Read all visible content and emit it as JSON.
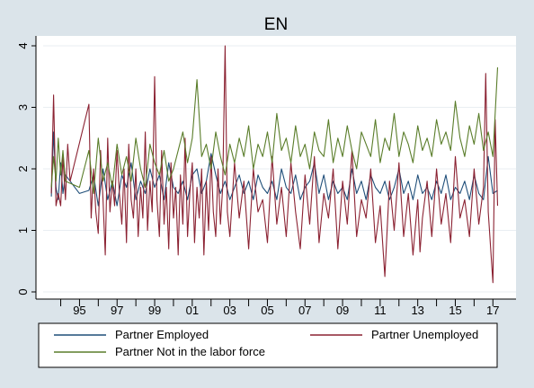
{
  "chart_data": {
    "type": "line",
    "title": "EN",
    "xlabel": "",
    "ylabel": "",
    "ylim": [
      0,
      4
    ],
    "xlim": [
      1993.4,
      2017.8
    ],
    "y_ticks": [
      0,
      1,
      2,
      3,
      4
    ],
    "y_tick_labels": [
      "0",
      "1",
      "2",
      "3",
      "4"
    ],
    "x_major_ticks": [
      1995,
      1997,
      1999,
      2001,
      2003,
      2005,
      2007,
      2009,
      2011,
      2013,
      2015,
      2017
    ],
    "x_tick_labels": [
      "95",
      "97",
      "99",
      "01",
      "03",
      "05",
      "07",
      "09",
      "11",
      "13",
      "15",
      "17"
    ],
    "grid": "horizontal",
    "legend_position": "bottom",
    "series": [
      {
        "name": "Partner Employed",
        "color": "#1f4e79",
        "x": [
          1993.5,
          1993.62,
          1993.75,
          1993.87,
          1994.0,
          1994.12,
          1994.25,
          1995.0,
          1995.5,
          1995.75,
          1996.0,
          1996.25,
          1996.5,
          1996.75,
          1997.0,
          1997.25,
          1997.5,
          1997.75,
          1998.0,
          1998.25,
          1998.5,
          1998.75,
          1999.0,
          1999.25,
          1999.5,
          1999.75,
          2000.0,
          2000.25,
          2000.5,
          2000.75,
          2001.0,
          2001.25,
          2001.5,
          2001.75,
          2002.0,
          2002.25,
          2002.5,
          2002.75,
          2003.0,
          2003.25,
          2003.5,
          2003.75,
          2004.0,
          2004.25,
          2004.5,
          2004.75,
          2005.0,
          2005.25,
          2005.5,
          2005.75,
          2006.0,
          2006.25,
          2006.5,
          2006.75,
          2007.0,
          2007.25,
          2007.5,
          2007.75,
          2008.0,
          2008.25,
          2008.5,
          2008.75,
          2009.0,
          2009.25,
          2009.5,
          2009.75,
          2010.0,
          2010.25,
          2010.5,
          2010.75,
          2011.0,
          2011.25,
          2011.5,
          2011.75,
          2012.0,
          2012.25,
          2012.5,
          2012.75,
          2013.0,
          2013.25,
          2013.5,
          2013.75,
          2014.0,
          2014.25,
          2014.5,
          2014.75,
          2015.0,
          2015.25,
          2015.5,
          2015.75,
          2016.0,
          2016.25,
          2016.5,
          2016.75,
          2017.0,
          2017.25
        ],
        "values": [
          1.55,
          2.6,
          1.7,
          1.5,
          2.1,
          1.6,
          1.9,
          1.6,
          1.65,
          1.9,
          1.4,
          2.0,
          1.5,
          1.8,
          1.4,
          1.9,
          1.7,
          2.1,
          1.5,
          1.8,
          1.6,
          2.0,
          1.7,
          1.9,
          1.5,
          2.1,
          1.7,
          1.6,
          1.8,
          1.5,
          1.9,
          2.0,
          1.6,
          1.8,
          2.25,
          1.9,
          1.6,
          1.8,
          1.5,
          1.7,
          1.9,
          1.6,
          1.8,
          1.5,
          1.9,
          1.7,
          1.6,
          1.8,
          1.5,
          2.0,
          1.7,
          1.6,
          1.9,
          1.5,
          1.7,
          1.8,
          2.1,
          1.6,
          1.9,
          1.5,
          1.8,
          1.6,
          1.7,
          1.5,
          2.0,
          1.6,
          1.8,
          1.5,
          1.9,
          1.7,
          1.6,
          1.8,
          1.5,
          1.7,
          2.0,
          1.6,
          1.8,
          1.5,
          1.9,
          1.6,
          1.7,
          1.5,
          1.8,
          1.6,
          1.9,
          1.5,
          1.7,
          1.6,
          1.8,
          1.5,
          1.9,
          1.6,
          1.5,
          2.2,
          1.6,
          1.65
        ]
      },
      {
        "name": "Partner Unemployed",
        "color": "#8b2232",
        "x": [
          1993.5,
          1993.62,
          1993.75,
          1993.87,
          1994.0,
          1994.12,
          1994.25,
          1994.37,
          1994.5,
          1995.5,
          1995.62,
          1995.75,
          1995.87,
          1996.0,
          1996.12,
          1996.25,
          1996.37,
          1996.5,
          1996.62,
          1996.75,
          1996.87,
          1997.0,
          1997.12,
          1997.25,
          1997.37,
          1997.5,
          1997.62,
          1997.75,
          1997.87,
          1998.0,
          1998.12,
          1998.25,
          1998.37,
          1998.5,
          1998.62,
          1998.75,
          1998.87,
          1999.0,
          1999.12,
          1999.25,
          1999.37,
          1999.5,
          1999.62,
          1999.75,
          1999.87,
          2000.0,
          2000.12,
          2000.25,
          2000.37,
          2000.5,
          2000.62,
          2000.75,
          2000.87,
          2001.0,
          2001.12,
          2001.25,
          2001.37,
          2001.5,
          2001.62,
          2001.75,
          2001.87,
          2002.0,
          2002.12,
          2002.25,
          2002.37,
          2002.5,
          2002.62,
          2002.75,
          2002.87,
          2003.0,
          2003.25,
          2003.5,
          2003.75,
          2004.0,
          2004.25,
          2004.5,
          2004.75,
          2005.0,
          2005.25,
          2005.5,
          2005.75,
          2006.0,
          2006.25,
          2006.5,
          2006.75,
          2007.0,
          2007.25,
          2007.5,
          2007.75,
          2008.0,
          2008.25,
          2008.5,
          2008.75,
          2009.0,
          2009.25,
          2009.5,
          2009.75,
          2010.0,
          2010.25,
          2010.5,
          2010.75,
          2011.0,
          2011.25,
          2011.5,
          2011.75,
          2012.0,
          2012.25,
          2012.5,
          2012.75,
          2013.0,
          2013.12,
          2013.25,
          2013.5,
          2013.75,
          2014.0,
          2014.25,
          2014.5,
          2014.75,
          2015.0,
          2015.25,
          2015.5,
          2015.75,
          2016.0,
          2016.25,
          2016.5,
          2016.62,
          2016.75,
          2017.0,
          2017.12,
          2017.25
        ],
        "values": [
          1.6,
          3.2,
          1.4,
          1.6,
          1.4,
          2.2,
          1.5,
          2.4,
          1.8,
          3.05,
          1.2,
          2.0,
          1.3,
          0.95,
          2.3,
          1.5,
          0.6,
          2.5,
          1.3,
          1.8,
          1.4,
          2.3,
          1.6,
          1.1,
          2.0,
          0.8,
          2.4,
          1.5,
          1.2,
          2.0,
          0.9,
          1.7,
          1.2,
          2.6,
          1.0,
          1.8,
          1.3,
          3.5,
          1.5,
          0.9,
          2.3,
          1.1,
          1.7,
          0.7,
          2.1,
          1.2,
          1.7,
          0.6,
          1.9,
          1.1,
          2.5,
          0.9,
          1.6,
          2.1,
          0.8,
          1.7,
          1.2,
          2.0,
          0.6,
          1.8,
          1.0,
          2.2,
          1.3,
          0.9,
          2.0,
          1.1,
          1.7,
          4.0,
          1.3,
          0.9,
          2.1,
          1.2,
          1.8,
          0.7,
          2.0,
          1.3,
          1.5,
          0.8,
          2.2,
          1.1,
          1.7,
          0.9,
          2.1,
          1.3,
          0.7,
          1.9,
          1.1,
          2.2,
          0.8,
          1.6,
          1.2,
          2.0,
          0.7,
          1.8,
          1.1,
          2.3,
          0.9,
          1.5,
          1.2,
          2.0,
          0.8,
          1.4,
          0.25,
          1.8,
          1.0,
          2.1,
          0.9,
          1.6,
          0.6,
          1.5,
          0.65,
          1.2,
          1.8,
          0.9,
          2.0,
          1.1,
          1.6,
          0.8,
          2.2,
          1.2,
          1.5,
          0.9,
          2.0,
          1.1,
          1.7,
          3.55,
          1.3,
          0.15,
          2.8,
          1.4
        ]
      },
      {
        "name": "Partner Not in the labor force",
        "color": "#5a7d2a",
        "x": [
          1993.5,
          1993.62,
          1993.75,
          1993.87,
          1994.0,
          1994.12,
          1994.25,
          1995.0,
          1995.5,
          1995.75,
          1996.0,
          1996.25,
          1996.5,
          1996.75,
          1997.0,
          1997.25,
          1997.5,
          1997.75,
          1998.0,
          1998.25,
          1998.5,
          1998.75,
          1999.0,
          1999.25,
          1999.5,
          1999.75,
          2000.0,
          2000.25,
          2000.5,
          2000.75,
          2001.0,
          2001.25,
          2001.5,
          2001.75,
          2002.0,
          2002.25,
          2002.5,
          2002.75,
          2003.0,
          2003.25,
          2003.5,
          2003.75,
          2004.0,
          2004.25,
          2004.5,
          2004.75,
          2005.0,
          2005.25,
          2005.5,
          2005.75,
          2006.0,
          2006.25,
          2006.5,
          2006.75,
          2007.0,
          2007.25,
          2007.5,
          2007.75,
          2008.0,
          2008.25,
          2008.5,
          2008.75,
          2009.0,
          2009.25,
          2009.5,
          2009.75,
          2010.0,
          2010.25,
          2010.5,
          2010.75,
          2011.0,
          2011.25,
          2011.5,
          2011.75,
          2012.0,
          2012.25,
          2012.5,
          2012.75,
          2013.0,
          2013.25,
          2013.5,
          2013.75,
          2014.0,
          2014.25,
          2014.5,
          2014.75,
          2015.0,
          2015.25,
          2015.5,
          2015.75,
          2016.0,
          2016.25,
          2016.5,
          2016.75,
          2017.0,
          2017.25
        ],
        "values": [
          1.7,
          2.2,
          1.8,
          2.5,
          1.9,
          2.3,
          1.8,
          1.7,
          2.3,
          1.6,
          2.5,
          1.8,
          2.1,
          1.7,
          2.4,
          1.9,
          2.2,
          1.8,
          2.5,
          2.0,
          1.7,
          2.4,
          2.1,
          1.9,
          2.3,
          1.8,
          2.0,
          2.3,
          2.6,
          2.1,
          2.5,
          3.45,
          2.2,
          2.4,
          2.0,
          2.6,
          2.2,
          1.9,
          2.4,
          2.1,
          2.5,
          2.2,
          2.7,
          2.0,
          2.4,
          2.2,
          2.6,
          2.1,
          2.9,
          2.3,
          2.5,
          2.1,
          2.7,
          2.2,
          2.4,
          2.0,
          2.6,
          2.3,
          2.2,
          2.8,
          2.1,
          2.5,
          2.2,
          2.7,
          2.3,
          2.0,
          2.6,
          2.4,
          2.2,
          2.8,
          2.1,
          2.5,
          2.3,
          2.9,
          2.2,
          2.6,
          2.4,
          2.1,
          2.7,
          2.3,
          2.5,
          2.2,
          2.8,
          2.4,
          2.6,
          2.3,
          3.1,
          2.5,
          2.2,
          2.7,
          2.4,
          2.9,
          2.3,
          2.6,
          2.2,
          3.65
        ]
      }
    ]
  }
}
